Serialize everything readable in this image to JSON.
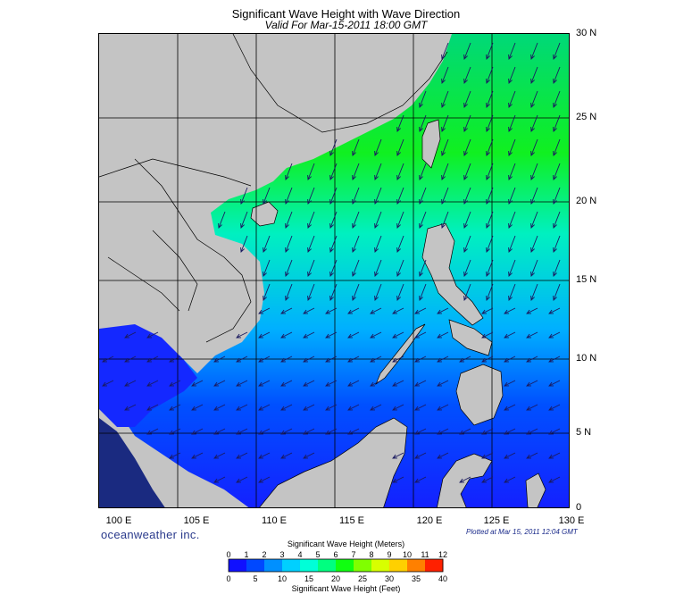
{
  "title": "Significant Wave Height with Wave Direction",
  "subtitle": "Valid For Mar-15-2011 18:00 GMT",
  "lat_labels": [
    "30 N",
    "25 N",
    "20 N",
    "15 N",
    "10 N",
    "5 N",
    "0"
  ],
  "lon_labels": [
    "100 E",
    "105 E",
    "110 E",
    "115 E",
    "120 E",
    "125 E",
    "130 E"
  ],
  "brand": "oceanweather inc.",
  "plotted_at": "Plotted at Mar 15, 2011 12:04 GMT",
  "legend": {
    "title_meters": "Significant Wave Height (Meters)",
    "title_feet": "Significant Wave Height (Feet)",
    "meters_ticks": [
      "0",
      "1",
      "2",
      "3",
      "4",
      "5",
      "6",
      "7",
      "8",
      "9",
      "10",
      "11",
      "12"
    ],
    "feet_ticks": [
      "0",
      "5",
      "10",
      "15",
      "20",
      "25",
      "30",
      "35",
      "40"
    ],
    "colors": [
      "#1010ff",
      "#0048ff",
      "#0090ff",
      "#00d0ff",
      "#00ffd8",
      "#00ff80",
      "#10ff10",
      "#80ff00",
      "#d8ff00",
      "#ffd000",
      "#ff8000",
      "#ff2000"
    ]
  },
  "colors": {
    "land": "#c4c4c4",
    "arrow": "#1a1a60",
    "grid": "#000000"
  }
}
